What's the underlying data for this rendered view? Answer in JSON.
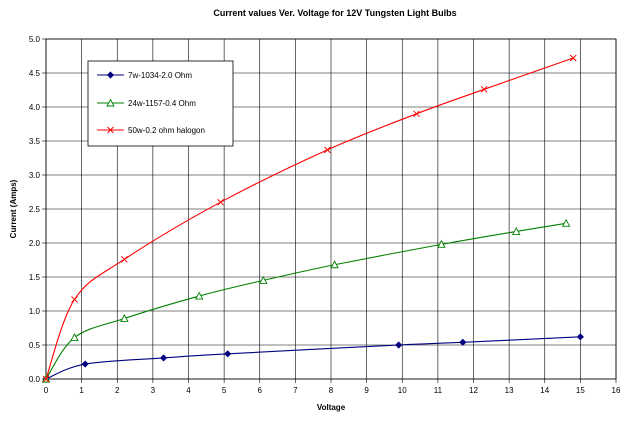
{
  "chart_data": {
    "type": "line",
    "title": "Current values Ver. Voltage for 12V Tungsten Light Bulbs",
    "xlabel": "Voltage",
    "ylabel": "Current (Amps)",
    "xlim": [
      0,
      16
    ],
    "ylim": [
      0,
      5.0
    ],
    "x_ticks": [
      "0",
      "1",
      "2",
      "3",
      "4",
      "5",
      "6",
      "7",
      "8",
      "9",
      "10",
      "11",
      "12",
      "13",
      "14",
      "15",
      "16"
    ],
    "y_ticks": [
      "0.0",
      "0.5",
      "1.0",
      "1.5",
      "2.0",
      "2.5",
      "3.0",
      "3.5",
      "4.0",
      "4.5",
      "5.0"
    ],
    "grid": true,
    "legend_position": "top-left",
    "series": [
      {
        "name": "7w-1034-2.0 Ohm",
        "color": "#000080",
        "marker": "diamond",
        "x": [
          0,
          1.1,
          3.3,
          5.1,
          9.9,
          11.7,
          15.0
        ],
        "y": [
          0,
          0.22,
          0.31,
          0.37,
          0.5,
          0.54,
          0.62
        ]
      },
      {
        "name": "24w-1157-0.4 Ohm",
        "color": "#008000",
        "marker": "triangle",
        "x": [
          0,
          0.8,
          2.2,
          4.3,
          6.1,
          8.1,
          11.1,
          13.2,
          14.6
        ],
        "y": [
          0,
          0.61,
          0.89,
          1.22,
          1.45,
          1.68,
          1.98,
          2.17,
          2.29
        ]
      },
      {
        "name": "50w-0.2 ohm halogon",
        "color": "#FF0000",
        "marker": "x",
        "x": [
          0,
          0.8,
          2.2,
          4.9,
          7.9,
          10.4,
          12.3,
          14.8
        ],
        "y": [
          0,
          1.17,
          1.76,
          2.6,
          3.37,
          3.9,
          4.26,
          4.72
        ]
      }
    ]
  }
}
